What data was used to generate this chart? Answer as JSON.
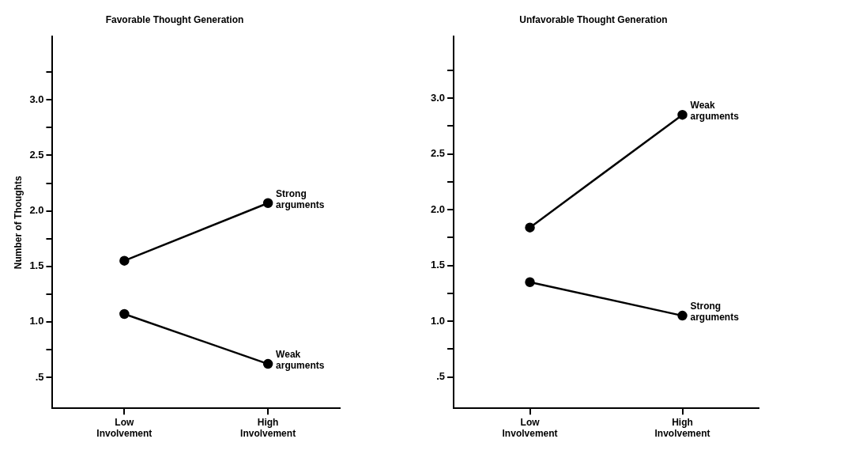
{
  "chart_data": [
    {
      "type": "line",
      "title": "Favorable Thought Generation",
      "ylabel": "Number of Thoughts",
      "categories": [
        "Low Involvement",
        "High Involvement"
      ],
      "series": [
        {
          "name": "Strong arguments",
          "color": "#000000",
          "values": [
            1.55,
            2.07
          ]
        },
        {
          "name": "Weak arguments",
          "color": "#000000",
          "values": [
            1.07,
            0.62
          ]
        }
      ],
      "ylim": [
        0.22,
        3.57
      ],
      "yticks": [
        {
          "value": 0.5,
          "label": ".5"
        },
        {
          "value": 0.75,
          "label": null
        },
        {
          "value": 1,
          "label": "1.0"
        },
        {
          "value": 1.25,
          "label": null
        },
        {
          "value": 1.5,
          "label": "1.5"
        },
        {
          "value": 1.75,
          "label": null
        },
        {
          "value": 2,
          "label": "2.0"
        },
        {
          "value": 2.25,
          "label": null
        },
        {
          "value": 2.5,
          "label": "2.5"
        },
        {
          "value": 2.75,
          "label": null
        },
        {
          "value": 3,
          "label": "3.0"
        },
        {
          "value": 3.25,
          "label": null
        }
      ],
      "grid": false,
      "legend": false,
      "marker": "circle",
      "line_style": "solid"
    },
    {
      "type": "line",
      "title": "Unfavorable Thought Generation",
      "categories": [
        "Low Involvement",
        "High Involvement"
      ],
      "series": [
        {
          "name": "Weak arguments",
          "color": "#000000",
          "values": [
            1.84,
            2.85
          ]
        },
        {
          "name": "Strong arguments",
          "color": "#000000",
          "values": [
            1.35,
            1.05
          ]
        }
      ],
      "ylim": [
        0.22,
        3.55
      ],
      "yticks": [
        {
          "value": 0.5,
          "label": ".5"
        },
        {
          "value": 0.75,
          "label": null
        },
        {
          "value": 1,
          "label": "1.0"
        },
        {
          "value": 1.25,
          "label": null
        },
        {
          "value": 1.5,
          "label": "1.5"
        },
        {
          "value": 1.75,
          "label": null
        },
        {
          "value": 2,
          "label": "2.0"
        },
        {
          "value": 2.25,
          "label": null
        },
        {
          "value": 2.5,
          "label": "2.5"
        },
        {
          "value": 2.75,
          "label": null
        },
        {
          "value": 3,
          "label": "3.0"
        },
        {
          "value": 3.25,
          "label": null
        }
      ],
      "grid": false,
      "legend": false,
      "marker": "circle",
      "line_style": "solid"
    }
  ]
}
